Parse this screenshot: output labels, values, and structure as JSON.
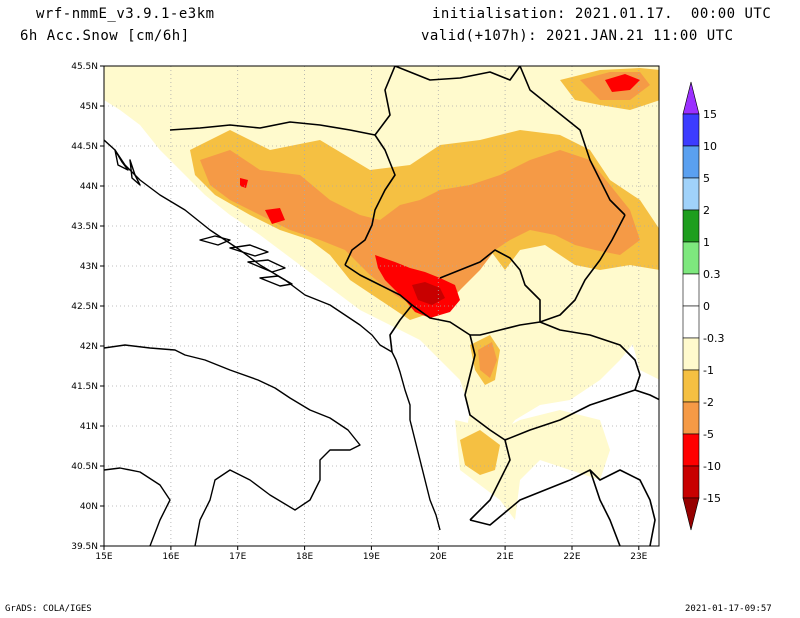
{
  "header": {
    "model": "wrf-nmmE_v3.9.1-e3km",
    "field": "6h Acc.Snow [cm/6h]",
    "init": "initialisation: 2021.01.17.  00:00 UTC",
    "valid": "valid(+107h): 2021.JAN.21 11:00 UTC"
  },
  "footer": {
    "left": "GrADS: COLA/IGES",
    "right": "2021-01-17-09:57"
  },
  "axes": {
    "lon_labels": [
      "15E",
      "16E",
      "17E",
      "18E",
      "19E",
      "20E",
      "21E",
      "22E",
      "23E"
    ],
    "lat_labels": [
      "45.5N",
      "45N",
      "44.5N",
      "44N",
      "43.5N",
      "43N",
      "42.5N",
      "42N",
      "41.5N",
      "41N",
      "40.5N",
      "40N",
      "39.5N"
    ],
    "lon_range": [
      15,
      23.3
    ],
    "lat_range": [
      39.5,
      45.5
    ],
    "grid": "dotted"
  },
  "colorbar": {
    "labels": [
      "15",
      "10",
      "5",
      "2",
      "1",
      "0.3",
      "0",
      "-0.3",
      "-1",
      "-2",
      "-5",
      "-10",
      "-15"
    ],
    "colors": [
      "#9b30ff",
      "#3c3cff",
      "#5aa0f0",
      "#a0d2fa",
      "#1e9e1e",
      "#7ee87e",
      "#ffffff",
      "#ffffff",
      "#fffacd",
      "#f5c042",
      "#f59a46",
      "#ff0000",
      "#c80000",
      "#960000"
    ]
  },
  "palette": {
    "light": "#fffacd",
    "yellow": "#f5c042",
    "orange": "#f59a46",
    "red": "#ff0000",
    "darkred": "#c80000"
  }
}
